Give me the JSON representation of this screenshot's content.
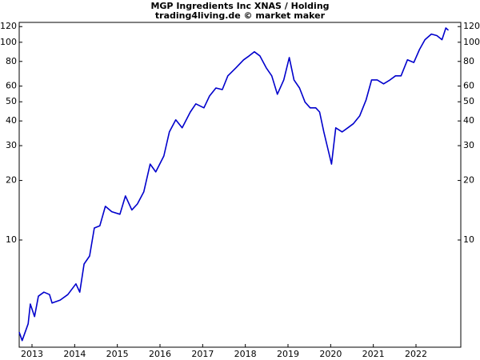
{
  "chart_data": {
    "type": "line",
    "title": "MGP Ingredients Inc XNAS / Holding",
    "subtitle": "trading4living.de © market maker",
    "yscale": "log",
    "xlim": [
      2012.7,
      2023.05
    ],
    "xticks": [
      2013,
      2014,
      2015,
      2016,
      2017,
      2018,
      2019,
      2020,
      2021,
      2022
    ],
    "ylim": [
      2.87,
      126
    ],
    "yticks": [
      10,
      20,
      30,
      40,
      50,
      60,
      80,
      100,
      120
    ],
    "series": [
      {
        "color": "#0000cc",
        "x": [
          2012.7,
          2012.77,
          2012.91,
          2012.96,
          2013.06,
          2013.15,
          2013.28,
          2013.41,
          2013.47,
          2013.66,
          2013.84,
          2014.03,
          2014.12,
          2014.22,
          2014.35,
          2014.46,
          2014.59,
          2014.72,
          2014.87,
          2015.06,
          2015.19,
          2015.34,
          2015.47,
          2015.62,
          2015.77,
          2015.9,
          2016.09,
          2016.22,
          2016.37,
          2016.52,
          2016.71,
          2016.84,
          2017.03,
          2017.16,
          2017.31,
          2017.46,
          2017.59,
          2017.78,
          2017.96,
          2018.09,
          2018.21,
          2018.34,
          2018.49,
          2018.62,
          2018.75,
          2018.9,
          2019.03,
          2019.14,
          2019.27,
          2019.4,
          2019.52,
          2019.65,
          2019.74,
          2019.84,
          2019.93,
          2020.02,
          2020.12,
          2020.27,
          2020.4,
          2020.53,
          2020.68,
          2020.83,
          2020.96,
          2021.09,
          2021.24,
          2021.39,
          2021.52,
          2021.65,
          2021.8,
          2021.95,
          2022.08,
          2022.21,
          2022.36,
          2022.49,
          2022.61,
          2022.7,
          2022.76
        ],
        "values": [
          3.42,
          3.1,
          3.77,
          4.74,
          4.1,
          5.2,
          5.45,
          5.3,
          4.8,
          4.97,
          5.3,
          6.0,
          5.45,
          7.56,
          8.3,
          11.5,
          11.8,
          14.8,
          13.9,
          13.5,
          16.7,
          14.2,
          15.2,
          17.5,
          24.2,
          22.1,
          26.6,
          35.2,
          40.5,
          36.9,
          44.4,
          48.8,
          46.6,
          53.5,
          58.7,
          57.6,
          67.6,
          74.2,
          81.5,
          85.4,
          89.5,
          85.4,
          74.2,
          67.6,
          54.6,
          64.5,
          83.7,
          64.5,
          58.7,
          49.8,
          46.6,
          46.6,
          44.4,
          35.2,
          29.2,
          24.2,
          36.9,
          35.2,
          36.9,
          38.7,
          42.4,
          51.1,
          64.5,
          64.5,
          61.6,
          64.5,
          67.6,
          67.6,
          81.5,
          79,
          91.8,
          103,
          110,
          108,
          103,
          118,
          115
        ]
      }
    ]
  }
}
